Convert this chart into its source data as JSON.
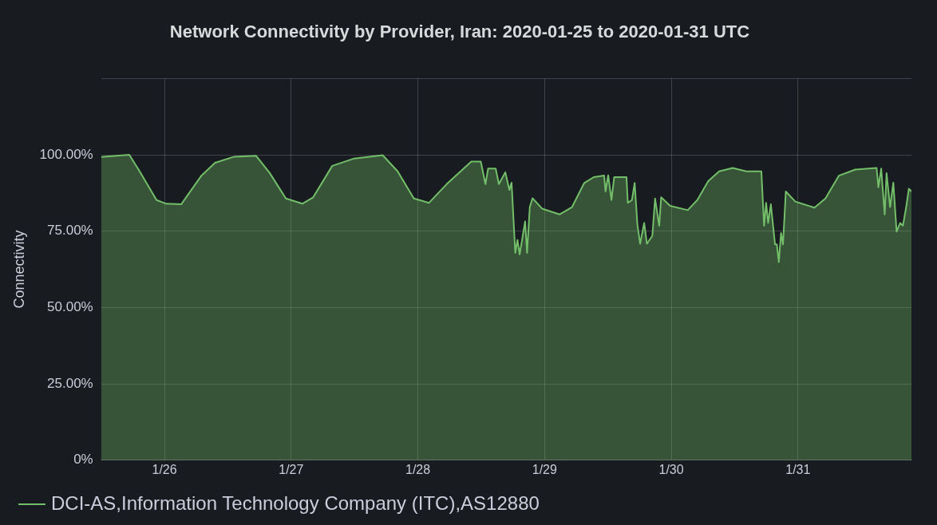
{
  "chart_data": {
    "type": "area",
    "title": "Network Connectivity by Provider, Iran: 2020-01-25 to 2020-01-31 UTC",
    "ylabel": "Connectivity",
    "xlim": [
      "2020-01-25T12:00",
      "2020-01-31T21:30"
    ],
    "xticks": [
      {
        "value": "2020-01-26",
        "label": "1/26"
      },
      {
        "value": "2020-01-27",
        "label": "1/27"
      },
      {
        "value": "2020-01-28",
        "label": "1/28"
      },
      {
        "value": "2020-01-29",
        "label": "1/29"
      },
      {
        "value": "2020-01-30",
        "label": "1/30"
      },
      {
        "value": "2020-01-31",
        "label": "1/31"
      }
    ],
    "ylim": [
      0,
      125
    ],
    "yticks": [
      {
        "value": 0,
        "label": "0%"
      },
      {
        "value": 25,
        "label": "25.00%"
      },
      {
        "value": 50,
        "label": "50.00%"
      },
      {
        "value": 75,
        "label": "75.00%"
      },
      {
        "value": 100,
        "label": "100.00%"
      },
      {
        "value": 125,
        "label": null
      }
    ],
    "grid": true,
    "legend": "bottom",
    "marker": "none",
    "line_style": "solid",
    "series": [
      {
        "name": "DCI-AS,Information Technology Company (ITC),AS12880",
        "color": "#73bf69",
        "x": [
          "2020-01-25T12:00",
          "2020-01-25T17:20",
          "2020-01-25T19:10",
          "2020-01-25T22:30",
          "2020-01-26T00:20",
          "2020-01-26T03:10",
          "2020-01-26T07:00",
          "2020-01-26T09:35",
          "2020-01-26T13:12",
          "2020-01-26T17:20",
          "2020-01-26T19:55",
          "2020-01-26T23:00",
          "2020-01-27T02:07",
          "2020-01-27T04:10",
          "2020-01-27T07:47",
          "2020-01-27T11:55",
          "2020-01-27T17:20",
          "2020-01-27T20:10",
          "2020-01-27T23:15",
          "2020-01-28T02:07",
          "2020-01-28T05:27",
          "2020-01-28T10:07",
          "2020-01-28T11:55",
          "2020-01-28T12:48",
          "2020-01-28T13:18",
          "2020-01-28T14:44",
          "2020-01-28T15:21",
          "2020-01-28T16:34",
          "2020-01-28T17:20",
          "2020-01-28T17:45",
          "2020-01-28T18:27",
          "2020-01-28T18:52",
          "2020-01-28T19:17",
          "2020-01-28T20:19",
          "2020-01-28T20:41",
          "2020-01-28T21:12",
          "2020-01-28T21:43",
          "2020-01-28T23:32",
          "2020-01-29T02:52",
          "2020-01-29T05:12",
          "2020-01-29T07:31",
          "2020-01-29T09:19",
          "2020-01-29T11:17",
          "2020-01-29T11:33",
          "2020-01-29T12:03",
          "2020-01-29T12:40",
          "2020-01-29T13:11",
          "2020-01-29T15:31",
          "2020-01-29T15:46",
          "2020-01-29T16:33",
          "2020-01-29T17:04",
          "2020-01-29T17:35",
          "2020-01-29T18:06",
          "2020-01-29T18:52",
          "2020-01-29T19:23",
          "2020-01-29T20:25",
          "2020-01-29T20:56",
          "2020-01-29T21:43",
          "2020-01-29T22:05",
          "2020-01-29T23:48",
          "2020-01-30T03:07",
          "2020-01-30T04:56",
          "2020-01-30T07:00",
          "2020-01-30T09:04",
          "2020-01-30T11:38",
          "2020-01-30T14:13",
          "2020-01-30T17:04",
          "2020-01-30T17:35",
          "2020-01-30T17:58",
          "2020-01-30T18:21",
          "2020-01-30T18:52",
          "2020-01-30T19:39",
          "2020-01-30T20:00",
          "2020-01-30T20:22",
          "2020-01-30T20:48",
          "2020-01-30T21:10",
          "2020-01-30T21:42",
          "2020-01-30T23:30",
          "2020-01-31T03:07",
          "2020-01-31T05:12",
          "2020-01-31T07:46",
          "2020-01-31T10:52",
          "2020-01-31T14:54",
          "2020-01-31T15:14",
          "2020-01-31T15:46",
          "2020-01-31T16:26",
          "2020-01-31T16:47",
          "2020-01-31T17:27",
          "2020-01-31T18:04",
          "2020-01-31T18:41",
          "2020-01-31T19:22",
          "2020-01-31T19:53",
          "2020-01-31T20:30",
          "2020-01-31T21:00",
          "2020-01-31T21:30"
        ],
        "values": [
          99.3,
          100,
          95.0,
          85.2,
          84.0,
          83.8,
          93.2,
          97.4,
          99.4,
          99.7,
          94.1,
          85.7,
          84.0,
          86.1,
          96.4,
          98.8,
          99.9,
          94.6,
          85.7,
          84.3,
          90.4,
          97.8,
          97.8,
          90.4,
          95.5,
          95.5,
          90.4,
          94.3,
          88.5,
          90.9,
          67.9,
          72.1,
          67.4,
          78.2,
          67.9,
          82.9,
          85.8,
          82.4,
          80.5,
          82.9,
          90.8,
          92.7,
          93.2,
          88.0,
          93.3,
          85.2,
          92.7,
          92.7,
          84.3,
          85.2,
          90.8,
          77.2,
          70.9,
          77.7,
          70.9,
          73.5,
          85.7,
          76.8,
          86.1,
          83.3,
          81.9,
          85.2,
          91.4,
          94.6,
          95.7,
          94.6,
          94.6,
          76.8,
          84.3,
          77.7,
          83.8,
          70.7,
          70.7,
          64.9,
          74.4,
          70.7,
          88.0,
          84.7,
          82.7,
          85.7,
          93.2,
          95.2,
          95.7,
          89.4,
          95.5,
          80.5,
          94.0,
          82.9,
          90.9,
          74.9,
          77.7,
          76.8,
          82.9,
          88.9,
          88.0
        ]
      }
    ]
  }
}
